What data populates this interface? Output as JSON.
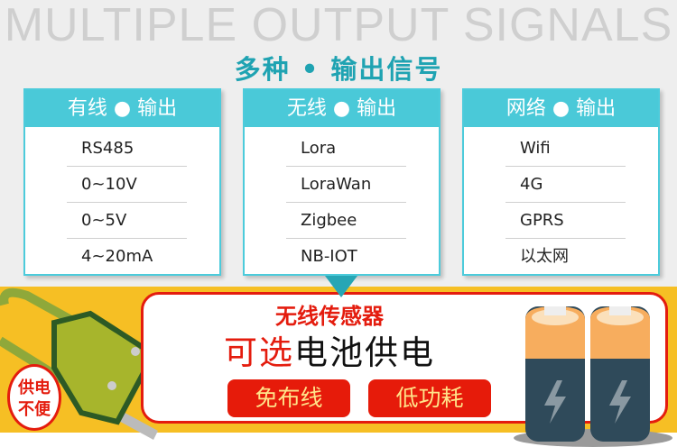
{
  "background_title": "MULTIPLE OUTPUT SIGNALS",
  "title": "多种 • 输出信号",
  "cards": [
    {
      "header": "有线 ● 输出",
      "items": [
        "RS485",
        "0~10V",
        "0~5V",
        "4~20mA"
      ]
    },
    {
      "header": "无线 ● 输出",
      "items": [
        "Lora",
        "LoraWan",
        "Zigbee",
        "NB-IOT"
      ]
    },
    {
      "header": "网络 ● 输出",
      "items": [
        "Wifi",
        "4G",
        "GPRS",
        "以太网"
      ]
    }
  ],
  "banner": {
    "line1": "无线传感器",
    "line2_red": "可选",
    "line2_black": "电池供电",
    "buttons": [
      "免布线",
      "低功耗"
    ],
    "badge": "供电不便"
  },
  "colors": {
    "accent": "#4ac9d8",
    "title": "#1fa3b2",
    "red": "#e41c0e",
    "yellow": "#f6bf24"
  }
}
